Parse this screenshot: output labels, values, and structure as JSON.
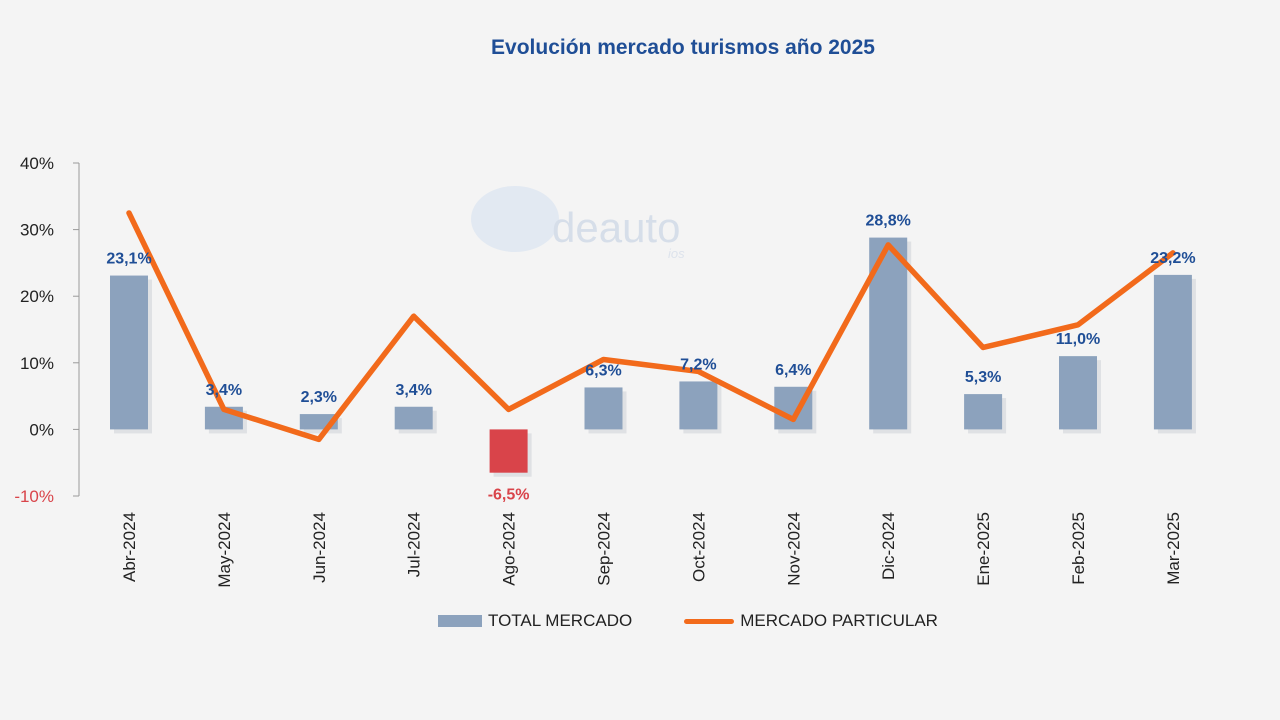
{
  "chart_data": {
    "type": "bar",
    "title": "Evolución mercado turismos año 2025",
    "categories": [
      "Abr-2024",
      "May-2024",
      "Jun-2024",
      "Jul-2024",
      "Ago-2024",
      "Sep-2024",
      "Oct-2024",
      "Nov-2024",
      "Dic-2024",
      "Ene-2025",
      "Feb-2025",
      "Mar-2025"
    ],
    "series": [
      {
        "name": "TOTAL MERCADO",
        "type": "bar",
        "values": [
          23.1,
          3.4,
          2.3,
          3.4,
          -6.5,
          6.3,
          7.2,
          6.4,
          28.8,
          5.3,
          11.0,
          23.2
        ],
        "labels": [
          "23,1%",
          "3,4%",
          "2,3%",
          "3,4%",
          "-6,5%",
          "6,3%",
          "7,2%",
          "6,4%",
          "28,8%",
          "5,3%",
          "11,0%",
          "23,2%"
        ],
        "color": "#8ca2bd",
        "negative_color": "#d9444a"
      },
      {
        "name": "MERCADO PARTICULAR",
        "type": "line",
        "values": [
          32.5,
          3.0,
          -1.5,
          17.0,
          3.0,
          10.5,
          8.7,
          1.5,
          27.7,
          12.3,
          15.7,
          26.5
        ],
        "color": "#f26a1b"
      }
    ],
    "ylim": [
      -10,
      40
    ],
    "yticks": [
      "-10%",
      "0%",
      "10%",
      "20%",
      "30%",
      "40%"
    ],
    "ytick_values": [
      -10,
      0,
      10,
      20,
      30,
      40
    ],
    "legend_position": "bottom",
    "label_color": "#1f4e96"
  },
  "watermark": {
    "text": "deauto",
    "sub": "ios"
  }
}
